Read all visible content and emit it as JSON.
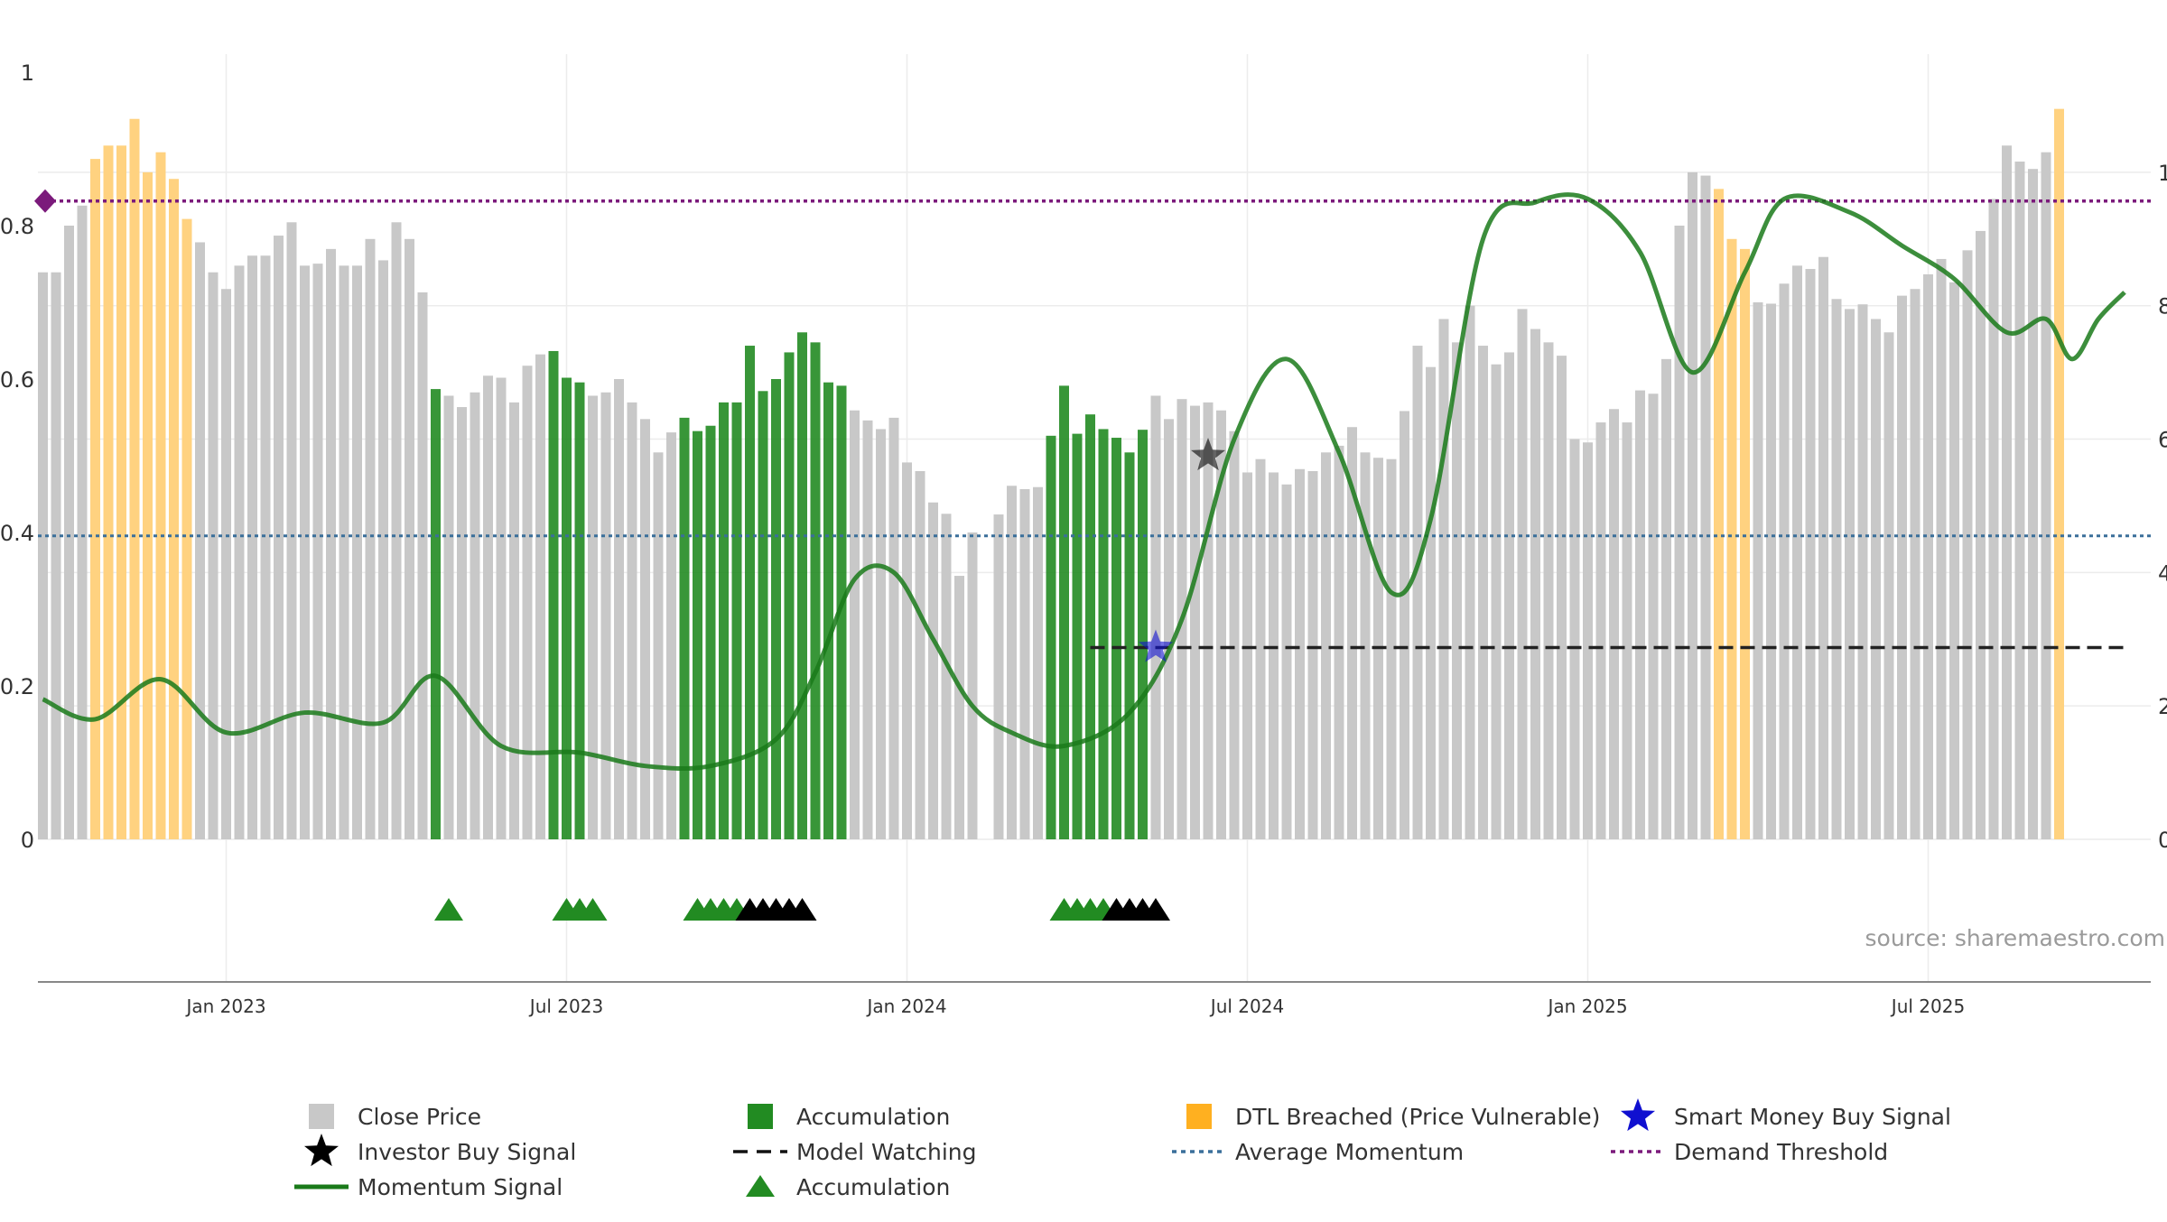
{
  "chart_data": {
    "type": "bar",
    "source_note": "source: sharemaestro.com",
    "left_axis": {
      "ticks": [
        0,
        0.2,
        0.4,
        0.6,
        0.8,
        1
      ],
      "tick_labels": [
        "0",
        "0.2",
        "0.4",
        "0.6",
        "0.8",
        "1"
      ],
      "range": [
        0,
        1
      ]
    },
    "right_axis": {
      "ticks": [
        0,
        2,
        4,
        6,
        8,
        10
      ],
      "tick_labels": [
        "0",
        "2",
        "4",
        "6",
        "8",
        "10"
      ],
      "range": [
        0,
        11.5
      ]
    },
    "x_axis": {
      "tick_labels": [
        "Jan 2023",
        "Jul 2023",
        "Jan 2024",
        "Jul 2024",
        "Jan 2025",
        "Jul 2025"
      ],
      "tick_weeks": [
        14,
        40,
        66,
        92,
        118,
        144
      ]
    },
    "grid": true,
    "legend_position": "bottom",
    "colors": {
      "close_price": "#c8c8c8",
      "accumulation": "#228b22",
      "dtl_breached": "#ffd280",
      "momentum": "#1a7a1a",
      "average_momentum": "#3a6f9a",
      "demand_threshold": "#7b1a7b",
      "smart_money": "#1010d0",
      "investor": "#111111"
    },
    "close_price_weekly": [
      8.5,
      8.5,
      9.2,
      9.5,
      10.2,
      10.4,
      10.4,
      10.8,
      10.0,
      10.3,
      9.9,
      9.3,
      8.95,
      8.5,
      8.25,
      8.6,
      8.75,
      8.75,
      9.05,
      9.25,
      8.6,
      8.63,
      8.85,
      8.6,
      8.6,
      9.0,
      8.68,
      9.25,
      9.0,
      8.2,
      6.75,
      6.65,
      6.48,
      6.7,
      6.95,
      6.92,
      6.55,
      7.1,
      7.27,
      7.32,
      6.92,
      6.85,
      6.65,
      6.7,
      6.9,
      6.55,
      6.3,
      5.8,
      6.1,
      6.32,
      6.12,
      6.2,
      6.55,
      6.55,
      7.4,
      6.72,
      6.9,
      7.3,
      7.6,
      7.45,
      6.85,
      6.8,
      6.43,
      6.28,
      6.15,
      6.32,
      5.65,
      5.52,
      5.05,
      4.88,
      3.95,
      4.6,
      null,
      4.87,
      5.3,
      5.25,
      5.28,
      6.05,
      6.8,
      6.08,
      6.37,
      6.15,
      6.02,
      5.8,
      6.14,
      6.65,
      6.3,
      6.6,
      6.5,
      6.55,
      6.43,
      6.12,
      5.5,
      5.7,
      5.5,
      5.32,
      5.55,
      5.52,
      5.8,
      5.9,
      6.18,
      5.8,
      5.72,
      5.7,
      6.42,
      7.4,
      7.08,
      7.8,
      7.45,
      8.0,
      7.4,
      7.12,
      7.3,
      7.95,
      7.65,
      7.45,
      7.25,
      6.0,
      5.95,
      6.25,
      6.45,
      6.25,
      6.73,
      6.68,
      7.2,
      9.2,
      10.0,
      9.95,
      9.75,
      9.0,
      8.85,
      8.05,
      8.03,
      8.33,
      8.6,
      8.55,
      8.73,
      8.1,
      7.95,
      8.02,
      7.8,
      7.6,
      8.15,
      8.25,
      8.47,
      8.7,
      8.35,
      8.83,
      9.12,
      9.6,
      10.4,
      10.16,
      10.05,
      10.3,
      10.95
    ],
    "bar_classes_by_week": {
      "dtl_breached": [
        4,
        5,
        6,
        7,
        8,
        9,
        10,
        11,
        128,
        129,
        130,
        154,
        155,
        156,
        157,
        158,
        159
      ],
      "accumulation": [
        30,
        39,
        40,
        41,
        49,
        50,
        51,
        52,
        53,
        54,
        55,
        56,
        57,
        58,
        59,
        60,
        61,
        77,
        78,
        79,
        80,
        81,
        82,
        83,
        84
      ]
    },
    "momentum_signal": [
      [
        0,
        2.1
      ],
      [
        4,
        1.8
      ],
      [
        9,
        2.4
      ],
      [
        14,
        1.6
      ],
      [
        20,
        1.9
      ],
      [
        26,
        1.75
      ],
      [
        30,
        2.45
      ],
      [
        35,
        1.4
      ],
      [
        41,
        1.3
      ],
      [
        46,
        1.1
      ],
      [
        51,
        1.1
      ],
      [
        56,
        1.5
      ],
      [
        59,
        2.5
      ],
      [
        62,
        3.9
      ],
      [
        65,
        4.0
      ],
      [
        68,
        3.0
      ],
      [
        71,
        2.0
      ],
      [
        74,
        1.6
      ],
      [
        78,
        1.4
      ],
      [
        83,
        1.9
      ],
      [
        87,
        3.3
      ],
      [
        91,
        6.0
      ],
      [
        95,
        7.2
      ],
      [
        99,
        5.8
      ],
      [
        103,
        3.7
      ],
      [
        106,
        4.8
      ],
      [
        110,
        9.0
      ],
      [
        114,
        9.55
      ],
      [
        118,
        9.6
      ],
      [
        122,
        8.8
      ],
      [
        126,
        7.0
      ],
      [
        130,
        8.5
      ],
      [
        133,
        9.6
      ],
      [
        138,
        9.4
      ],
      [
        142,
        8.9
      ],
      [
        146,
        8.4
      ],
      [
        150,
        7.6
      ],
      [
        153,
        7.8
      ],
      [
        155,
        7.2
      ],
      [
        157,
        7.8
      ],
      [
        159,
        8.2
      ]
    ],
    "average_momentum": 4.55,
    "demand_threshold": 0.832,
    "model_watching": {
      "y": 2.875,
      "from_week": 80,
      "to_week": 160
    },
    "markers": {
      "smart_money_buy_signal": [
        {
          "week": 85,
          "y": 2.875
        }
      ],
      "investor_buy_signal": [
        {
          "week": 89,
          "y": 5.75
        }
      ]
    },
    "accumulation_triangles": {
      "green_weeks": [
        31,
        40,
        41,
        42,
        50,
        51,
        52,
        53,
        78,
        79,
        80,
        81
      ],
      "black_weeks": [
        54,
        55,
        56,
        57,
        58,
        82,
        83,
        84,
        85
      ]
    },
    "legend": [
      {
        "label": "Close Price",
        "icon": "gray-square"
      },
      {
        "label": "Accumulation",
        "icon": "green-square"
      },
      {
        "label": "DTL Breached (Price Vulnerable)",
        "icon": "orange-square"
      },
      {
        "label": "Smart Money Buy Signal",
        "icon": "blue-star"
      },
      {
        "label": "Investor Buy Signal",
        "icon": "black-star"
      },
      {
        "label": "Model Watching",
        "icon": "black-dashed-line"
      },
      {
        "label": "Average Momentum",
        "icon": "blue-dotted-line"
      },
      {
        "label": "Demand Threshold",
        "icon": "purple-dotted-line"
      },
      {
        "label": "Momentum Signal",
        "icon": "green-line"
      },
      {
        "label": "Accumulation",
        "icon": "green-triangle"
      }
    ]
  }
}
